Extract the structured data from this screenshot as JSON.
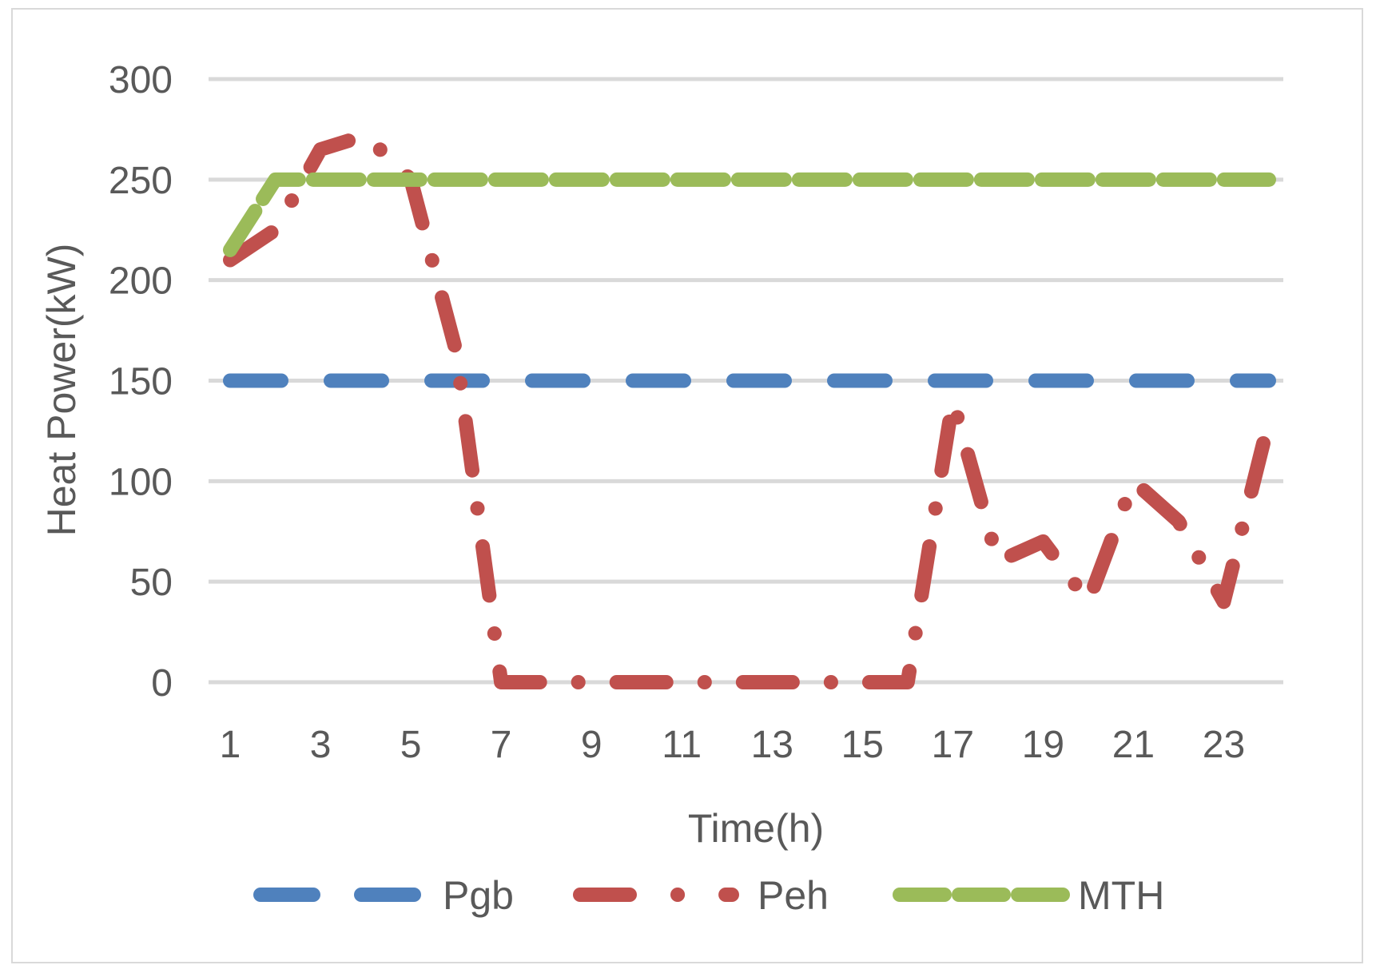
{
  "chart_data": {
    "type": "line",
    "title": "",
    "xlabel": "Time(h)",
    "ylabel": "Heat Power(kW)",
    "x": [
      1,
      2,
      3,
      4,
      5,
      6,
      7,
      8,
      9,
      10,
      11,
      12,
      13,
      14,
      15,
      16,
      17,
      18,
      19,
      20,
      21,
      22,
      23,
      24
    ],
    "x_tick_labels": [
      "1",
      "3",
      "5",
      "7",
      "9",
      "11",
      "13",
      "15",
      "17",
      "19",
      "21",
      "23"
    ],
    "x_tick_values": [
      1,
      3,
      5,
      7,
      9,
      11,
      13,
      15,
      17,
      19,
      21,
      23
    ],
    "ylim": [
      0,
      300
    ],
    "y_ticks": [
      0,
      50,
      100,
      150,
      200,
      250,
      300
    ],
    "grid": true,
    "legend_position": "bottom",
    "series": [
      {
        "name": "Pgb",
        "color": "#4f81bd",
        "style": "long-dash",
        "values": [
          150,
          150,
          150,
          150,
          150,
          150,
          150,
          150,
          150,
          150,
          150,
          150,
          150,
          150,
          150,
          150,
          150,
          150,
          150,
          150,
          150,
          150,
          150,
          150
        ]
      },
      {
        "name": "Peh",
        "color": "#c0504d",
        "style": "long-dash-dot",
        "values": [
          210,
          225,
          265,
          272,
          250,
          165,
          0,
          0,
          0,
          0,
          0,
          0,
          0,
          0,
          0,
          0,
          140,
          60,
          70,
          40,
          100,
          80,
          40,
          130
        ]
      },
      {
        "name": "MTH",
        "color": "#9bbb59",
        "style": "dash",
        "values": [
          215,
          250,
          250,
          250,
          250,
          250,
          250,
          250,
          250,
          250,
          250,
          250,
          250,
          250,
          250,
          250,
          250,
          250,
          250,
          250,
          250,
          250,
          250,
          250
        ]
      }
    ]
  }
}
